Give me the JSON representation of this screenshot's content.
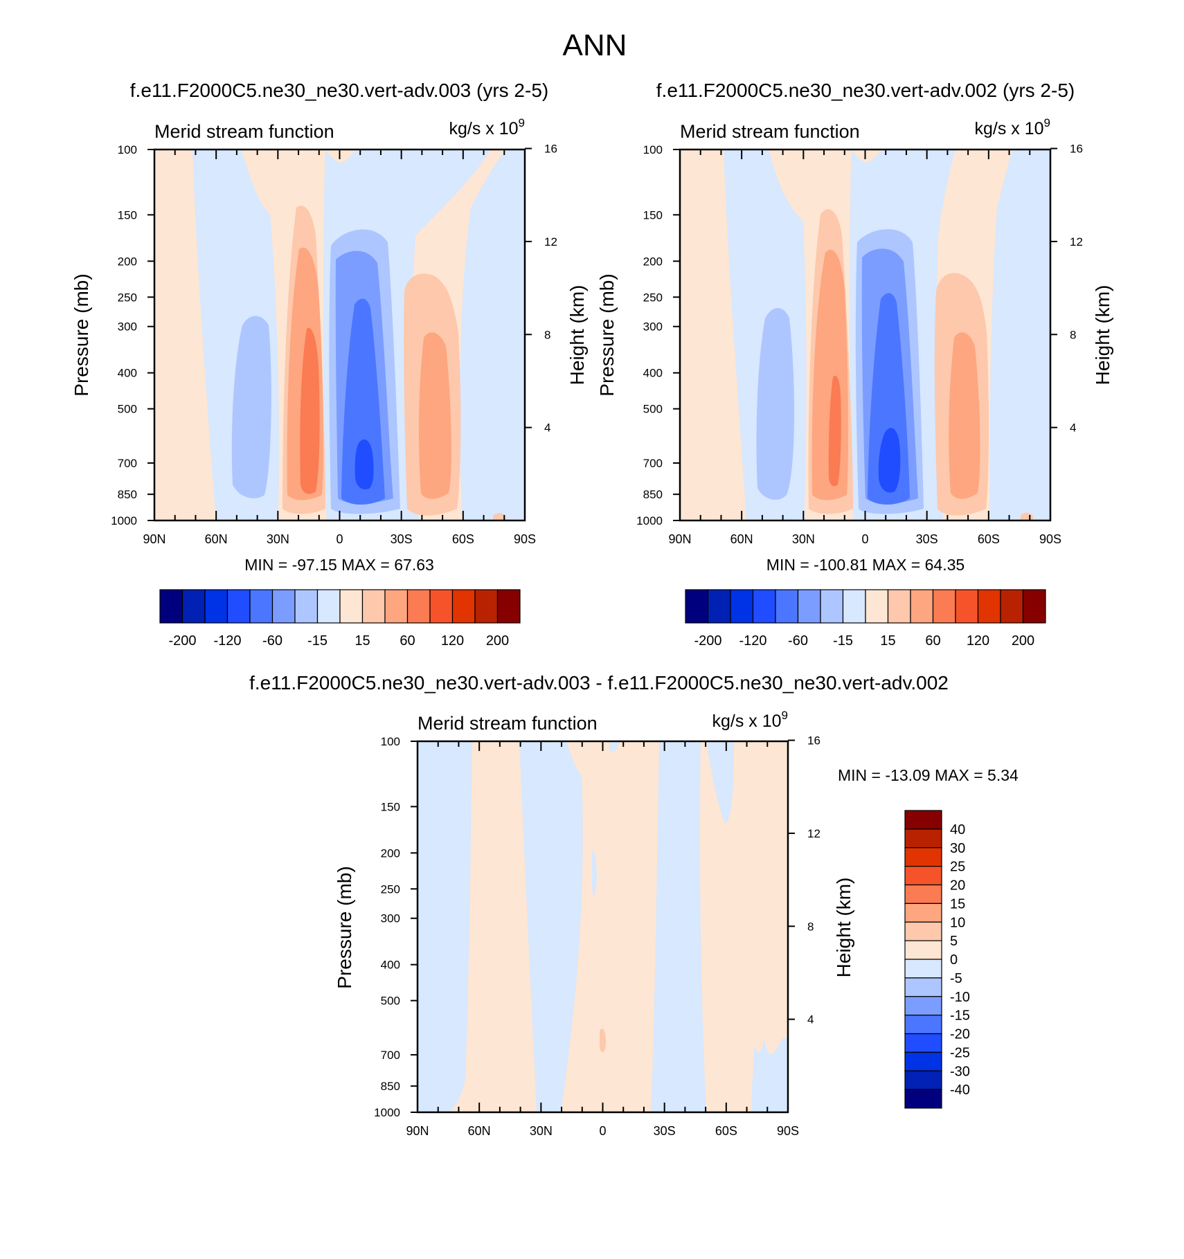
{
  "figure": {
    "title": "ANN"
  },
  "colors": {
    "levels_main": [
      "#00007f",
      "#0021b3",
      "#0032e6",
      "#1f4dff",
      "#4b76ff",
      "#7b9dff",
      "#adc6ff",
      "#d7e8ff",
      "#fde6d3",
      "#fdc8ac",
      "#fda680",
      "#fb7b52",
      "#f6532a",
      "#e13400",
      "#b82200",
      "#860000"
    ],
    "levels_diff": [
      "#00007f",
      "#0021b3",
      "#0032e6",
      "#1f4dff",
      "#4b76ff",
      "#7b9dff",
      "#adc6ff",
      "#d7e8ff",
      "#fde6d3",
      "#fdc8ac",
      "#fda680",
      "#fb7b52",
      "#f6532a",
      "#e13400",
      "#b82200",
      "#860000"
    ]
  },
  "chart_data": [
    {
      "type": "heatmap",
      "name": "panel-1",
      "title": "f.e11.F2000C5.ne30_ne30.vert-adv.003 (yrs 2-5)",
      "subtitle_left": "Merid stream function",
      "units_base": "kg/s x 10",
      "units_exp": "9",
      "xlabel": "",
      "ylabel": "Pressure (mb)",
      "ylabel_right": "Height (km)",
      "x_ticks": [
        "90N",
        "60N",
        "30N",
        "0",
        "30S",
        "60S",
        "90S"
      ],
      "y_ticks": [
        "100",
        "150",
        "200",
        "250",
        "300",
        "400",
        "500",
        "700",
        "850",
        "1000"
      ],
      "y_ticks_right": [
        "16",
        "12",
        "8",
        "4"
      ],
      "stats": "MIN = -97.15  MAX =  67.63",
      "colorbar_labels": [
        "-200",
        "-120",
        "-60",
        "-15",
        "15",
        "60",
        "120",
        "200"
      ],
      "cells": [
        {
          "lat": 68,
          "p": 500,
          "label": "-15"
        },
        {
          "lat": 44,
          "p": 500,
          "label": "-60"
        },
        {
          "lat": 15,
          "p": 560,
          "label": "60"
        },
        {
          "lat": -10,
          "p": 650,
          "label": "-97.15"
        },
        {
          "lat": -48,
          "p": 500,
          "label": "60"
        }
      ]
    },
    {
      "type": "heatmap",
      "name": "panel-2",
      "title": "f.e11.F2000C5.ne30_ne30.vert-adv.002 (yrs 2-5)",
      "subtitle_left": "Merid stream function",
      "units_base": "kg/s x 10",
      "units_exp": "9",
      "xlabel": "",
      "ylabel": "Pressure (mb)",
      "ylabel_right": "Height (km)",
      "x_ticks": [
        "90N",
        "60N",
        "30N",
        "0",
        "30S",
        "60S",
        "90S"
      ],
      "y_ticks": [
        "100",
        "150",
        "200",
        "250",
        "300",
        "400",
        "500",
        "700",
        "850",
        "1000"
      ],
      "y_ticks_right": [
        "16",
        "12",
        "8",
        "4"
      ],
      "stats": "MIN = -100.81  MAX =  64.35",
      "colorbar_labels": [
        "-200",
        "-120",
        "-60",
        "-15",
        "15",
        "60",
        "120",
        "200"
      ],
      "cells": [
        {
          "lat": 44,
          "p": 500,
          "label": "-60"
        },
        {
          "lat": 15,
          "p": 560,
          "label": "60"
        },
        {
          "lat": -10,
          "p": 650,
          "label": "-100.81"
        },
        {
          "lat": -48,
          "p": 500,
          "label": "60"
        }
      ]
    },
    {
      "type": "heatmap",
      "name": "panel-diff",
      "title": "f.e11.F2000C5.ne30_ne30.vert-adv.003 - f.e11.F2000C5.ne30_ne30.vert-adv.002",
      "subtitle_left": "Merid stream function",
      "units_base": "kg/s x 10",
      "units_exp": "9",
      "xlabel": "",
      "ylabel": "Pressure (mb)",
      "ylabel_right": "Height (km)",
      "x_ticks": [
        "90N",
        "60N",
        "30N",
        "0",
        "30S",
        "60S",
        "90S"
      ],
      "y_ticks": [
        "100",
        "150",
        "200",
        "250",
        "300",
        "400",
        "500",
        "700",
        "850",
        "1000"
      ],
      "y_ticks_right": [
        "16",
        "12",
        "8",
        "4"
      ],
      "stats": "MIN = -13.09  MAX =   5.34",
      "colorbar_labels": [
        "40",
        "30",
        "25",
        "20",
        "15",
        "10",
        "5",
        "0",
        "-5",
        "-10",
        "-15",
        "-20",
        "-25",
        "-30",
        "-40"
      ]
    }
  ]
}
